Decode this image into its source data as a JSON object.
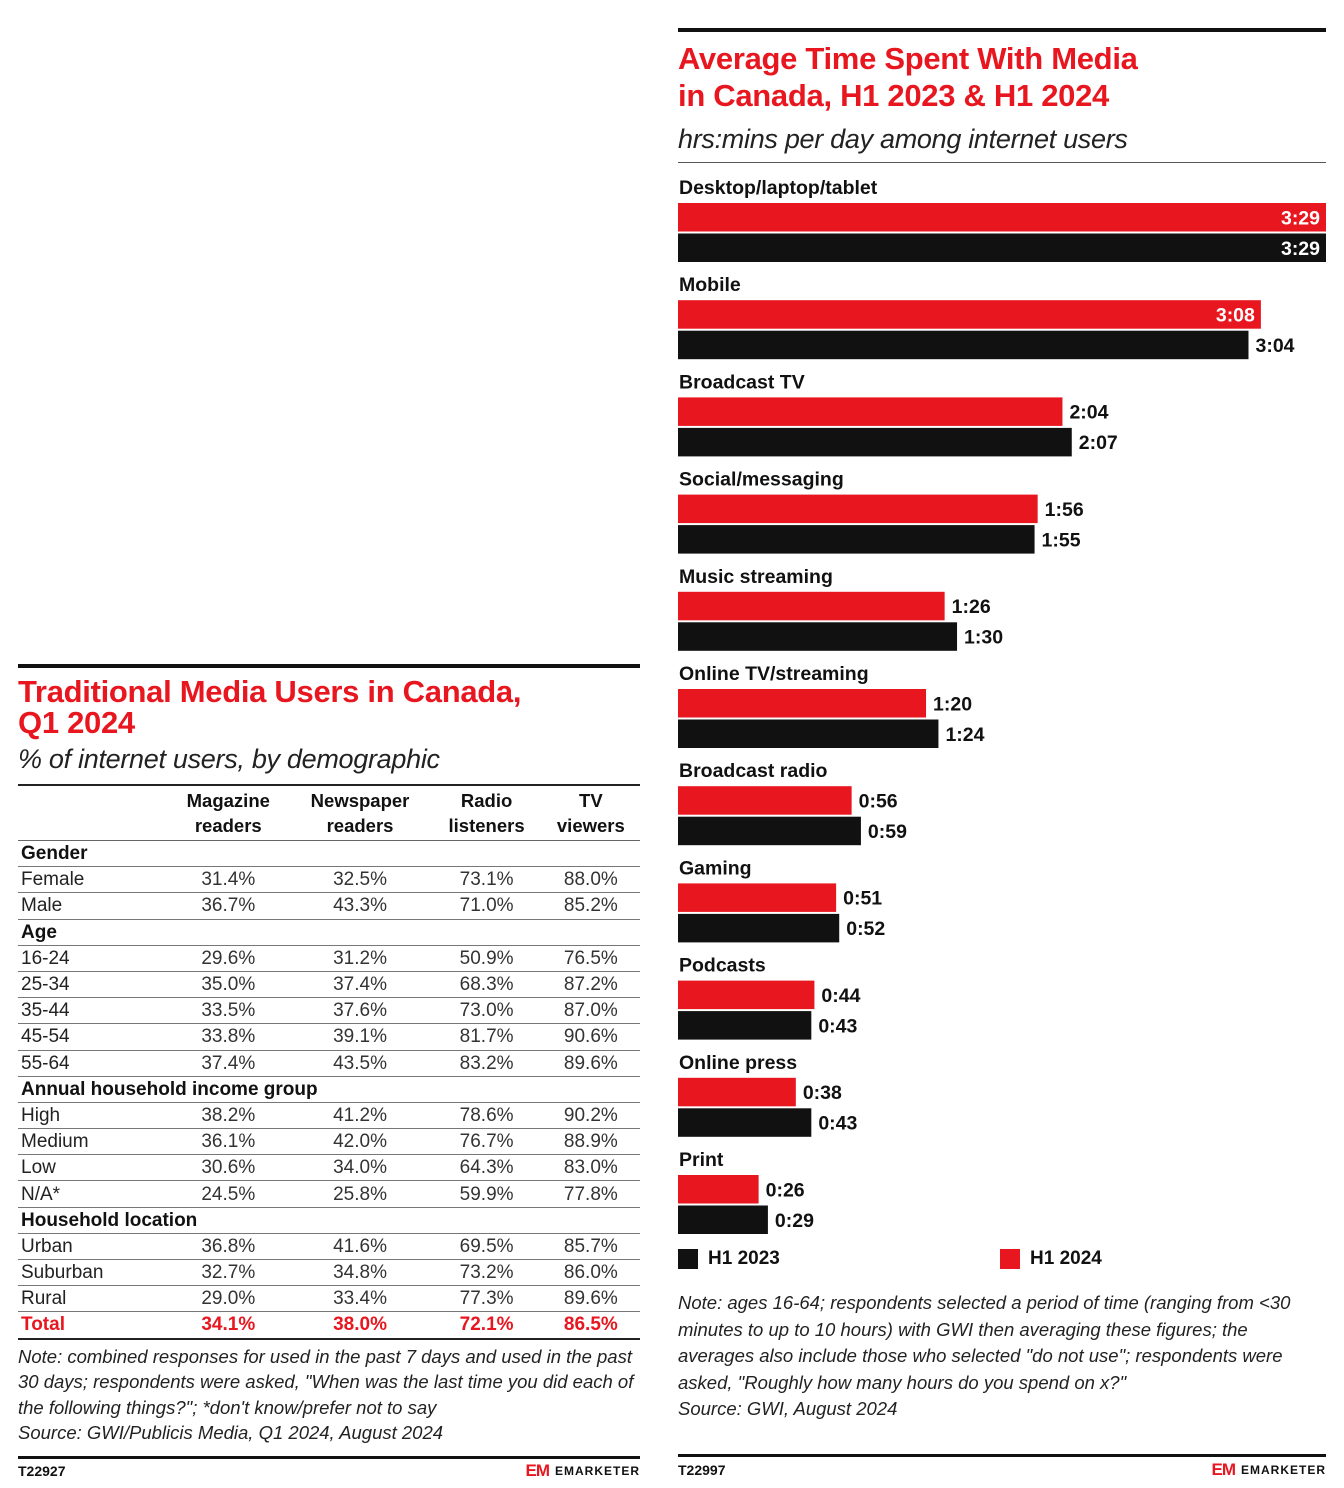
{
  "right": {
    "title_line1": "Average Time Spent With Media",
    "title_line2": "in Canada, H1 2023 & H1 2024",
    "subtitle": "hrs:mins per day among internet users",
    "legend": {
      "h2023": "H1 2023",
      "h2024": "H1 2024"
    },
    "note": "Note: ages 16-64; respondents selected a period of time (ranging from <30 minutes to up to 10 hours) with GWI then averaging these figures; the averages also include those who selected \"do not use\"; respondents were asked, \"Roughly how many hours do you spend on x?\"",
    "source": "Source: GWI, August 2024",
    "code": "T22997",
    "logo_mark": "EM",
    "logo_text": "EMARKETER"
  },
  "chart_data": {
    "type": "bar",
    "orientation": "horizontal",
    "title": "Average Time Spent With Media in Canada, H1 2023 & H1 2024",
    "subtitle": "hrs:mins per day among internet users",
    "categories": [
      "Desktop/laptop/tablet",
      "Mobile",
      "Broadcast TV",
      "Social/messaging",
      "Music streaming",
      "Online TV/streaming",
      "Broadcast radio",
      "Gaming",
      "Podcasts",
      "Online press",
      "Print"
    ],
    "series": [
      {
        "name": "H1 2024",
        "color": "#e8161f",
        "labels": [
          "3:29",
          "3:08",
          "2:04",
          "1:56",
          "1:26",
          "1:20",
          "0:56",
          "0:51",
          "0:44",
          "0:38",
          "0:26"
        ],
        "values_minutes": [
          209,
          188,
          124,
          116,
          86,
          80,
          56,
          51,
          44,
          38,
          26
        ]
      },
      {
        "name": "H1 2023",
        "color": "#111111",
        "labels": [
          "3:29",
          "3:04",
          "2:07",
          "1:55",
          "1:30",
          "1:24",
          "0:59",
          "0:52",
          "0:43",
          "0:43",
          "0:29"
        ],
        "values_minutes": [
          209,
          184,
          127,
          115,
          90,
          84,
          59,
          52,
          43,
          43,
          29
        ]
      }
    ],
    "xlim_minutes": [
      0,
      209
    ],
    "legend": "bottom"
  },
  "left": {
    "title_line1": "Traditional Media Users in Canada,",
    "title_line2": "Q1 2024",
    "subtitle": "% of internet users, by demographic",
    "columns": [
      {
        "l1": "Magazine",
        "l2": "readers"
      },
      {
        "l1": "Newspaper",
        "l2": "readers"
      },
      {
        "l1": "Radio",
        "l2": "listeners"
      },
      {
        "l1": "TV",
        "l2": "viewers"
      }
    ],
    "rows": [
      {
        "type": "group",
        "label": "Gender"
      },
      {
        "type": "row",
        "label": "Female",
        "values": [
          "31.4%",
          "32.5%",
          "73.1%",
          "88.0%"
        ]
      },
      {
        "type": "row",
        "label": "Male",
        "values": [
          "36.7%",
          "43.3%",
          "71.0%",
          "85.2%"
        ]
      },
      {
        "type": "group",
        "label": "Age"
      },
      {
        "type": "row",
        "label": "16-24",
        "values": [
          "29.6%",
          "31.2%",
          "50.9%",
          "76.5%"
        ]
      },
      {
        "type": "row",
        "label": "25-34",
        "values": [
          "35.0%",
          "37.4%",
          "68.3%",
          "87.2%"
        ]
      },
      {
        "type": "row",
        "label": "35-44",
        "values": [
          "33.5%",
          "37.6%",
          "73.0%",
          "87.0%"
        ]
      },
      {
        "type": "row",
        "label": "45-54",
        "values": [
          "33.8%",
          "39.1%",
          "81.7%",
          "90.6%"
        ]
      },
      {
        "type": "row",
        "label": "55-64",
        "values": [
          "37.4%",
          "43.5%",
          "83.2%",
          "89.6%"
        ]
      },
      {
        "type": "group",
        "label": "Annual household income group"
      },
      {
        "type": "row",
        "label": "High",
        "values": [
          "38.2%",
          "41.2%",
          "78.6%",
          "90.2%"
        ]
      },
      {
        "type": "row",
        "label": "Medium",
        "values": [
          "36.1%",
          "42.0%",
          "76.7%",
          "88.9%"
        ]
      },
      {
        "type": "row",
        "label": "Low",
        "values": [
          "30.6%",
          "34.0%",
          "64.3%",
          "83.0%"
        ]
      },
      {
        "type": "row",
        "label": "N/A*",
        "values": [
          "24.5%",
          "25.8%",
          "59.9%",
          "77.8%"
        ]
      },
      {
        "type": "group",
        "label": "Household location"
      },
      {
        "type": "row",
        "label": "Urban",
        "values": [
          "36.8%",
          "41.6%",
          "69.5%",
          "85.7%"
        ]
      },
      {
        "type": "row",
        "label": "Suburban",
        "values": [
          "32.7%",
          "34.8%",
          "73.2%",
          "86.0%"
        ]
      },
      {
        "type": "row",
        "label": "Rural",
        "values": [
          "29.0%",
          "33.4%",
          "77.3%",
          "89.6%"
        ]
      },
      {
        "type": "total",
        "label": "Total",
        "values": [
          "34.1%",
          "38.0%",
          "72.1%",
          "86.5%"
        ]
      }
    ],
    "note": "Note: combined responses for used in the past 7 days and used in the past 30 days; respondents were asked, \"When was the last time you did each of the following things?\"; *don't know/prefer not to say",
    "source": "Source: GWI/Publicis Media, Q1 2024, August 2024",
    "code": "T22927",
    "logo_mark": "EM",
    "logo_text": "EMARKETER"
  }
}
